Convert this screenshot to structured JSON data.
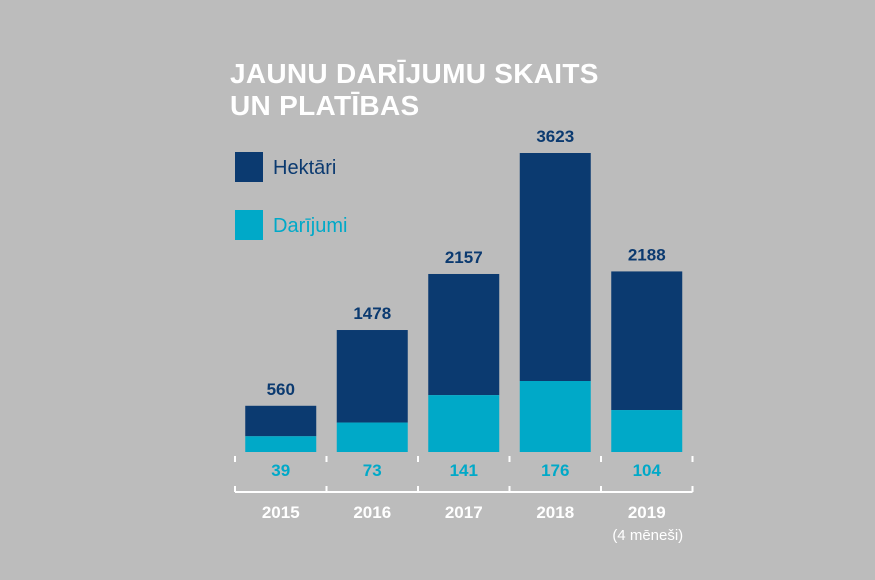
{
  "title_line1": "JAUNU DARĪJUMU SKAITS",
  "title_line2": "UN PLATĪBAS",
  "colors": {
    "hektari": "#0b3a70",
    "darijumi": "#00a9c8",
    "axis": "#ffffff"
  },
  "chart_data": {
    "type": "bar",
    "stacked": true,
    "categories": [
      "2015",
      "2016",
      "2017",
      "2018",
      "2019"
    ],
    "category_sublabels": [
      "",
      "",
      "",
      "",
      "(4 mēneši)"
    ],
    "series": [
      {
        "name": "Hektāri",
        "values": [
          560,
          1478,
          2157,
          3623,
          2188
        ]
      },
      {
        "name": "Darījumi",
        "values": [
          39,
          73,
          141,
          176,
          104
        ]
      }
    ],
    "legend_position": "top-left",
    "grid": false
  }
}
